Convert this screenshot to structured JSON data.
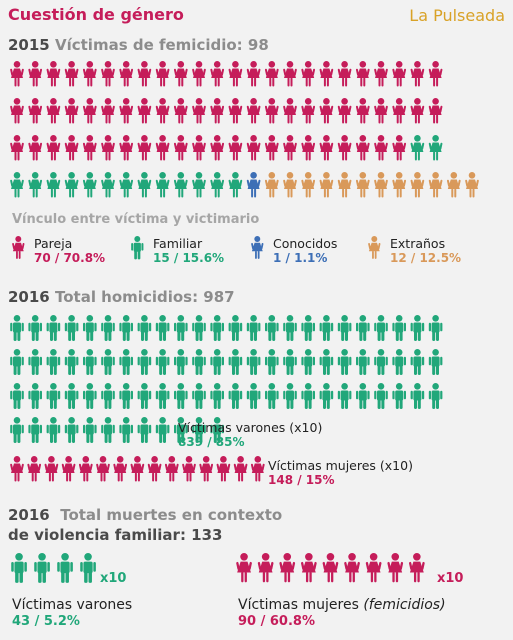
{
  "page": {
    "title": "Cuestión de género",
    "brand": "La Pulseada"
  },
  "colors": {
    "pareja": "#c51d5a",
    "familiar": "#21a77a",
    "conocidos": "#3d6fb6",
    "extranos": "#d9995a",
    "heading": "#4a4a4a"
  },
  "section1": {
    "year": "2015",
    "heading": "Víctimas de femicidio: 98",
    "subheading": "Vínculo entre víctima y victimario",
    "legend": [
      {
        "label": "Pareja",
        "value": "70 / 70.8%"
      },
      {
        "label": "Familiar",
        "value": "15 / 15.6%"
      },
      {
        "label": "Conocidos",
        "value": "1 / 1.1%"
      },
      {
        "label": "Extraños",
        "value": "12 / 12.5%"
      }
    ]
  },
  "section2": {
    "year": "2016",
    "heading": "Total homicidios: 987",
    "men_label": "Víctimas varones (x10)",
    "men_value": "839 / 85%",
    "women_label": "Víctimas mujeres (x10)",
    "women_value": "148 / 15%"
  },
  "section3": {
    "year": "2016",
    "heading_line1": "Total muertes en contexto",
    "heading_line2": "de violencia familiar: 133",
    "men_multiplier": "x10",
    "women_multiplier": "x10",
    "men_label": "Víctimas varones",
    "men_value": "43 / 5.2%",
    "women_label_main": "Víctimas mujeres",
    "women_label_em": "(femicidios)",
    "women_value": "90 / 60.8%"
  },
  "chart_data": [
    {
      "type": "pictogram",
      "title": "Víctimas de femicidio: 98",
      "categories": [
        "Pareja",
        "Familiar",
        "Conocidos",
        "Extraños"
      ],
      "values": [
        70,
        15,
        1,
        12
      ],
      "percentages": [
        70.8,
        15.6,
        1.1,
        12.5
      ],
      "unit_per_icon": 1
    },
    {
      "type": "pictogram",
      "title": "Total homicidios: 987",
      "categories": [
        "Víctimas varones",
        "Víctimas mujeres"
      ],
      "values": [
        839,
        148
      ],
      "percentages": [
        85,
        15
      ],
      "icons": [
        84,
        15
      ],
      "unit_per_icon": 10
    },
    {
      "type": "pictogram",
      "title": "Total muertes en contexto de violencia familiar: 133",
      "categories": [
        "Víctimas varones",
        "Víctimas mujeres"
      ],
      "values": [
        43,
        90
      ],
      "percentages": [
        5.2,
        60.8
      ],
      "icons": [
        4,
        9
      ],
      "unit_per_icon": 10
    }
  ]
}
